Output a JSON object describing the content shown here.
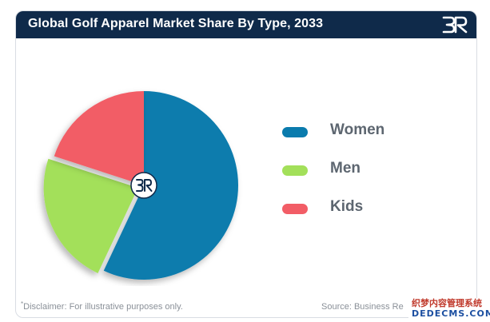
{
  "header": {
    "title": "Global Golf Apparel Market Share By Type, 2033",
    "logo_icon": "brand-br-logo-icon"
  },
  "chart_data": {
    "type": "pie",
    "title": "Global Golf Apparel Market Share By Type, 2033",
    "categories": [
      "Women",
      "Men",
      "Kids"
    ],
    "values": [
      57,
      23,
      20
    ],
    "colors": [
      "#0a7bad",
      "#a3e05a",
      "#f25d66"
    ],
    "exploded": "Men",
    "legend": "right",
    "center_icon": "brand-br-logo-icon"
  },
  "footer": {
    "disclaimer_mark": "*",
    "disclaimer_label": "Disclaimer:",
    "disclaimer_text": " For illustrative purposes only.",
    "source_text": "Source: Business Re"
  },
  "watermark": {
    "line1": "织梦内容管理系统",
    "line2": "DEDECMS.COM"
  }
}
